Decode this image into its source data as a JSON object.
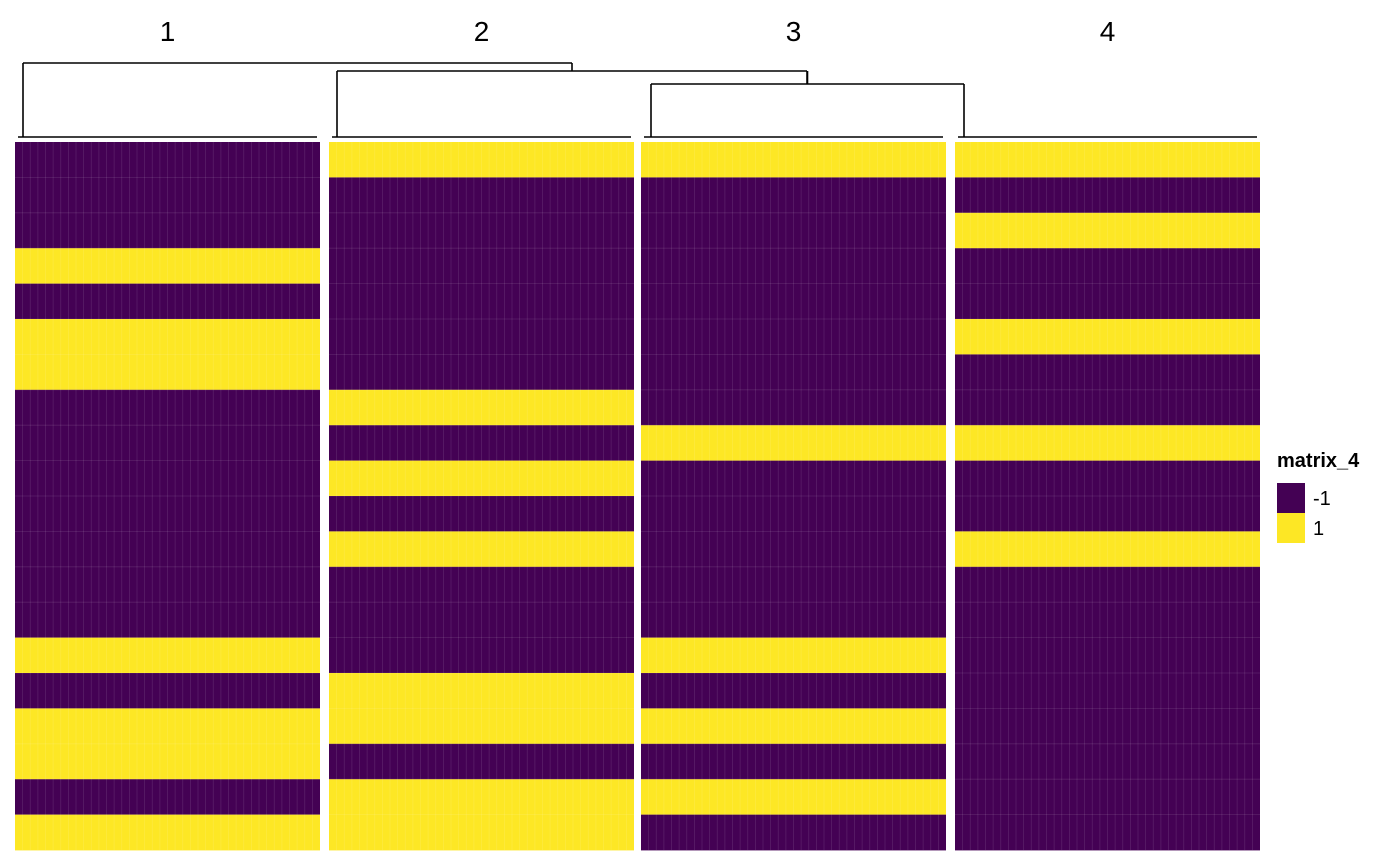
{
  "chart_data": {
    "type": "heatmap",
    "column_groups": [
      "1",
      "2",
      "3",
      "4"
    ],
    "rows": 20,
    "cells": [
      [
        -1,
        1,
        1,
        1
      ],
      [
        -1,
        -1,
        -1,
        -1
      ],
      [
        -1,
        -1,
        -1,
        1
      ],
      [
        1,
        -1,
        -1,
        -1
      ],
      [
        -1,
        -1,
        -1,
        -1
      ],
      [
        1,
        -1,
        -1,
        1
      ],
      [
        1,
        -1,
        -1,
        -1
      ],
      [
        -1,
        1,
        -1,
        -1
      ],
      [
        -1,
        -1,
        1,
        1
      ],
      [
        -1,
        1,
        -1,
        -1
      ],
      [
        -1,
        -1,
        -1,
        -1
      ],
      [
        -1,
        1,
        -1,
        1
      ],
      [
        -1,
        -1,
        -1,
        -1
      ],
      [
        -1,
        -1,
        -1,
        -1
      ],
      [
        1,
        -1,
        1,
        -1
      ],
      [
        -1,
        1,
        -1,
        -1
      ],
      [
        1,
        1,
        1,
        -1
      ],
      [
        1,
        -1,
        -1,
        -1
      ],
      [
        -1,
        1,
        1,
        -1
      ],
      [
        1,
        1,
        -1,
        -1
      ]
    ],
    "legend": {
      "title": "matrix_4",
      "items": [
        {
          "label": "-1",
          "value": -1,
          "color": "#440154"
        },
        {
          "label": "1",
          "value": 1,
          "color": "#FDE725"
        }
      ],
      "placement": "right"
    },
    "column_dendrogram": "top",
    "dendrogram_merges": [
      [
        "3",
        "4"
      ],
      [
        "2",
        [
          "3",
          "4"
        ]
      ],
      [
        "1",
        [
          "2",
          [
            "3",
            "4"
          ]
        ]
      ]
    ]
  }
}
